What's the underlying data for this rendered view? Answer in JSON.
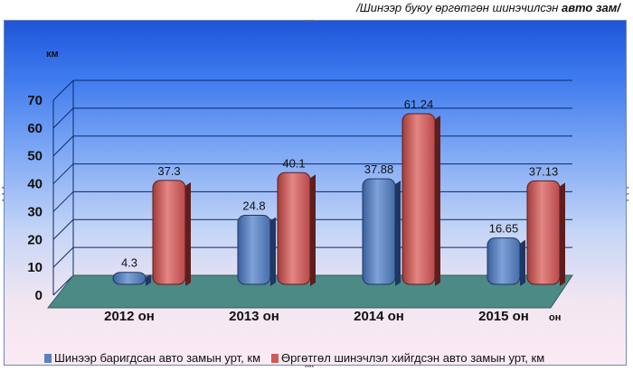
{
  "caption": {
    "prefix": "/Шинээр буюу өргөтгөн шинэчилсэн ",
    "bold": "авто зам/"
  },
  "chart_data": {
    "type": "bar",
    "title": "",
    "ylabel": "км",
    "xunit": "он",
    "ylim": [
      0,
      70
    ],
    "yticks": [
      0,
      10,
      20,
      30,
      40,
      50,
      60,
      70
    ],
    "categories": [
      "2012 он",
      "2013 он",
      "2014 он",
      "2015 он"
    ],
    "series": [
      {
        "name": "Шинээр баригдсан авто замын урт, км",
        "values": [
          4.3,
          24.8,
          37.88,
          16.65
        ],
        "labels": [
          "4.3",
          "24.8",
          "37.88",
          "16.65"
        ],
        "color": "#5b80bb"
      },
      {
        "name": "Өргөтгөл шинэчлэл хийгдсэн авто замын урт, км",
        "values": [
          37.3,
          40.1,
          61.24,
          37.13
        ],
        "labels": [
          "37.3",
          "40.1",
          "61.24",
          "37.13"
        ],
        "color": "#cf5a57"
      }
    ],
    "grid": true,
    "legend_position": "bottom"
  }
}
